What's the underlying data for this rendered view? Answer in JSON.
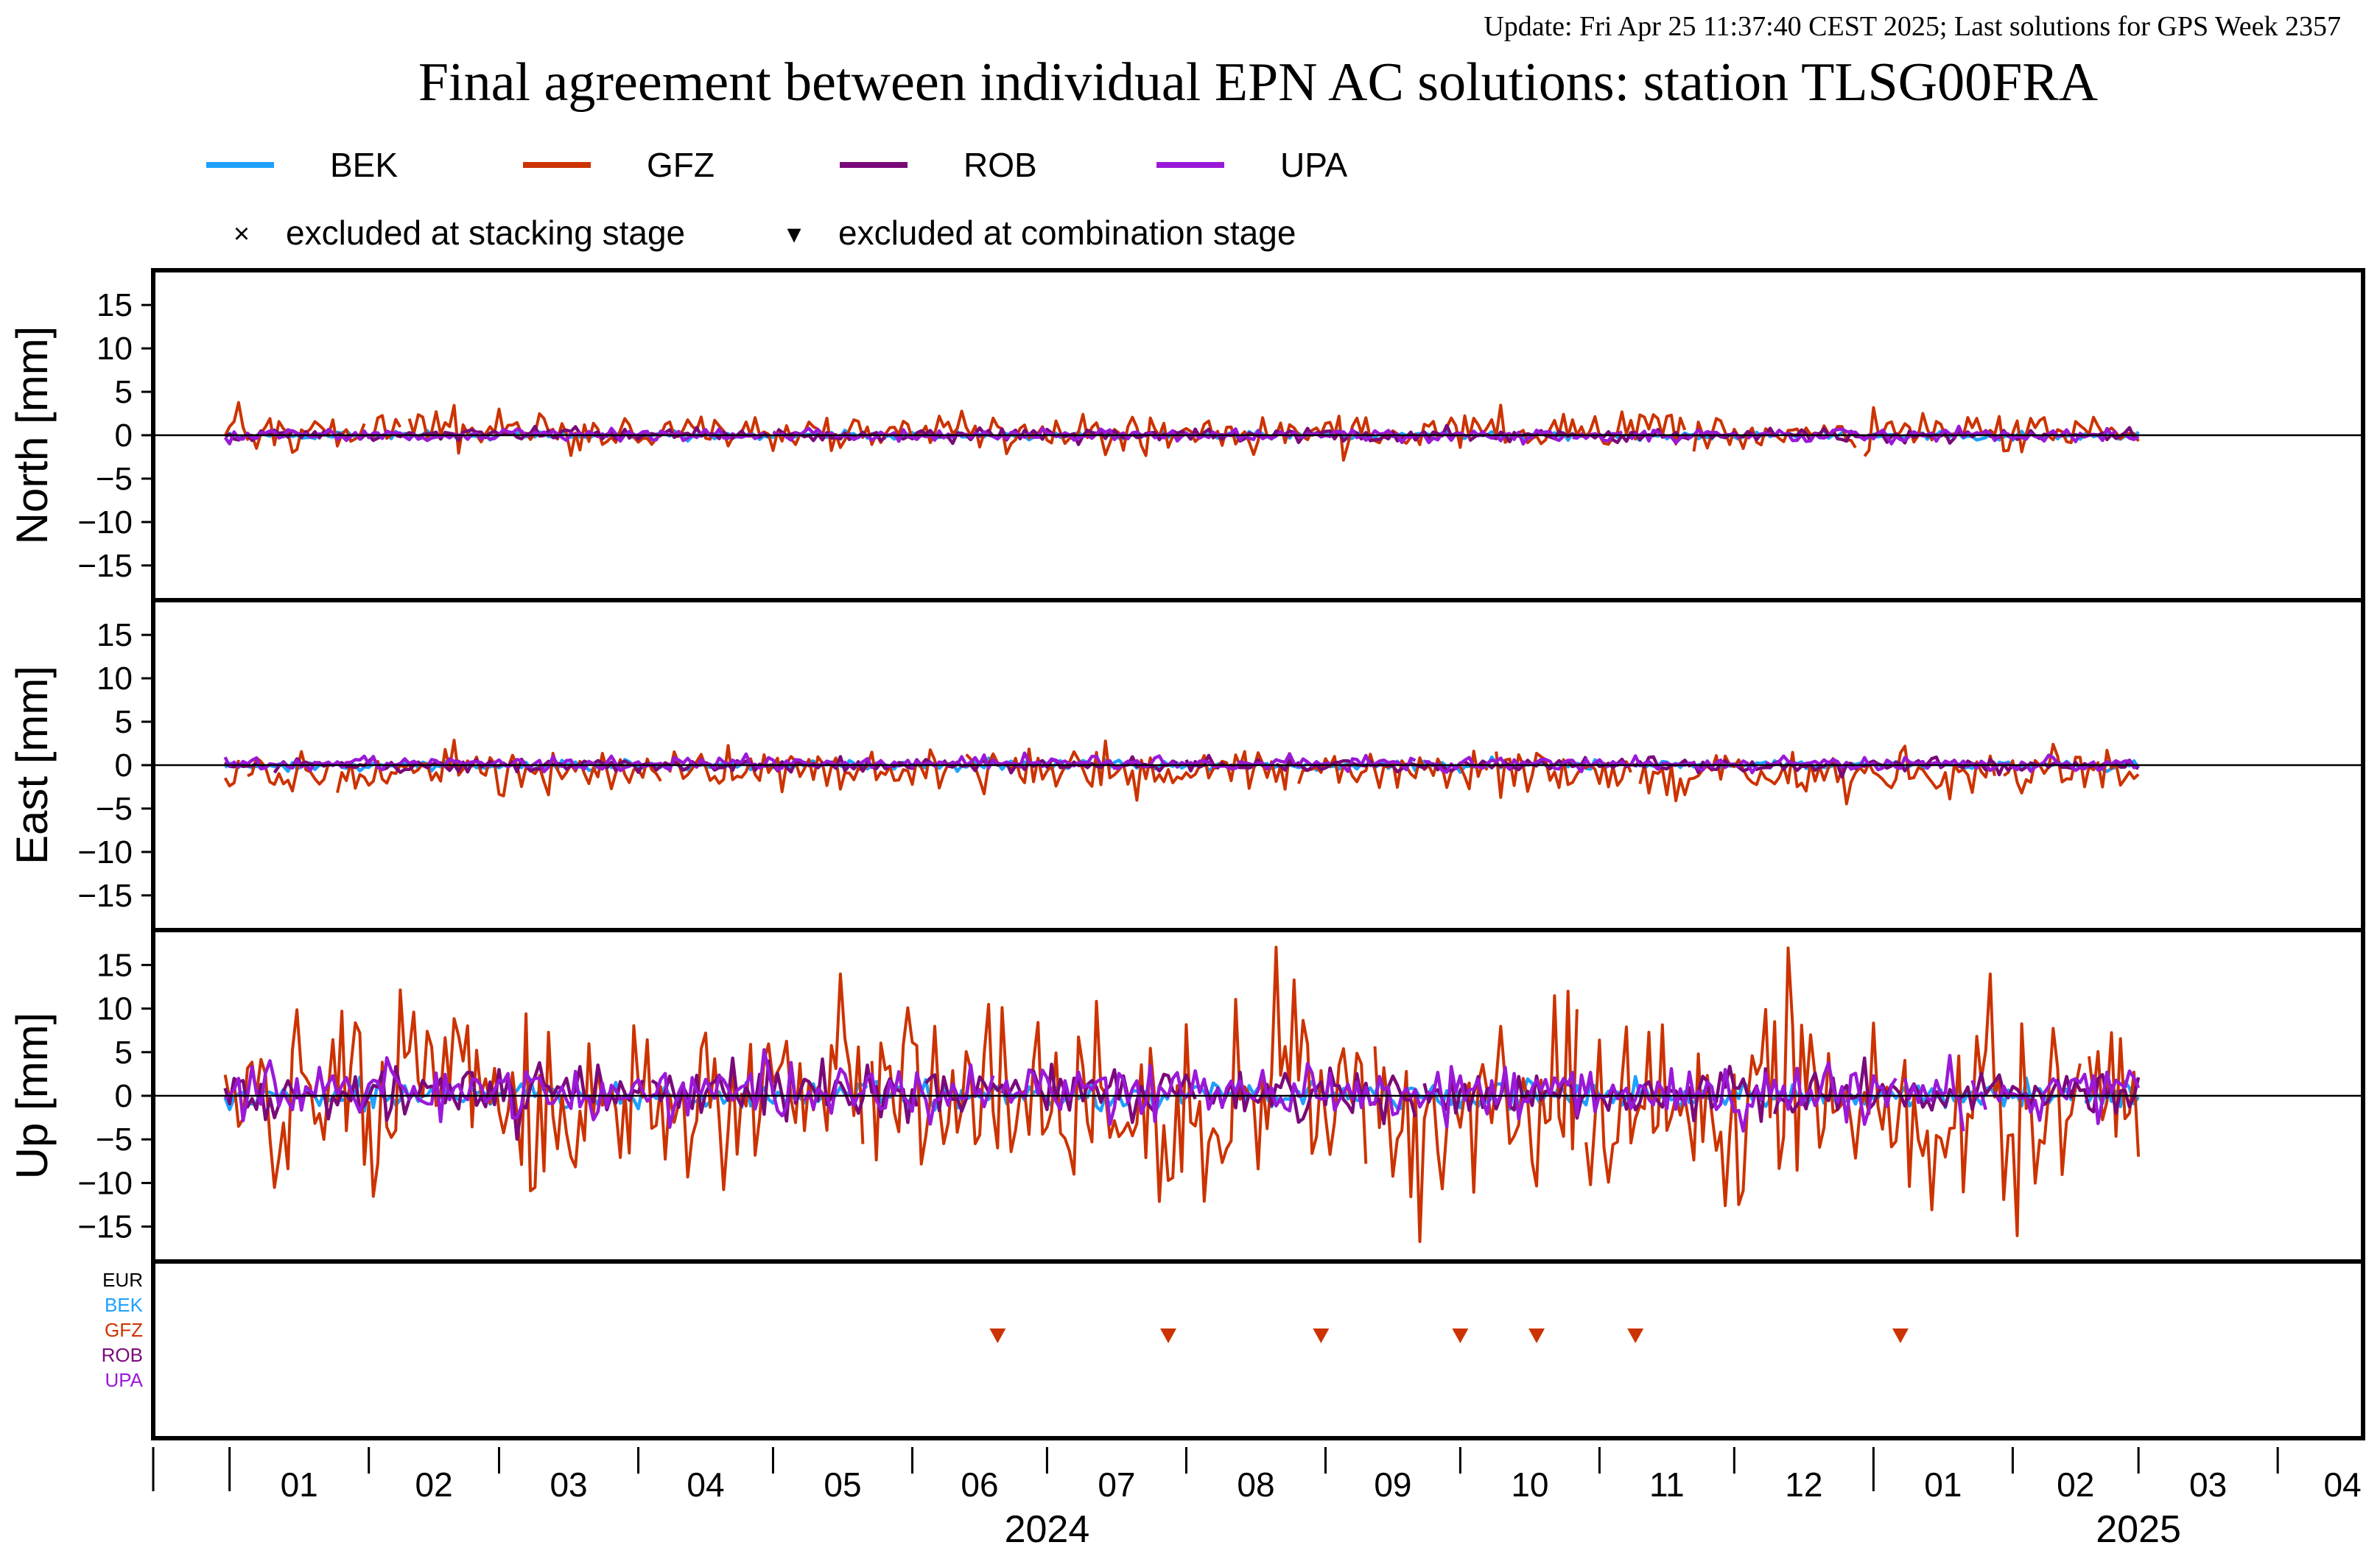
{
  "header": {
    "update_text": "Update: Fri Apr 25 11:37:40 CEST 2025; Last solutions for GPS Week 2357",
    "title": "Final agreement between individual EPN AC solutions: station TLSG00FRA"
  },
  "colors": {
    "BEK": "#1ea0ff",
    "GFZ": "#cc3300",
    "ROB": "#7a0a7a",
    "UPA": "#9a19d8",
    "EUR": "#000000",
    "update_text": "#8b1a1a"
  },
  "legend": {
    "series": [
      {
        "name": "BEK",
        "color": "#1ea0ff"
      },
      {
        "name": "GFZ",
        "color": "#cc3300"
      },
      {
        "name": "ROB",
        "color": "#7a0a7a"
      },
      {
        "name": "UPA",
        "color": "#9a19d8"
      }
    ],
    "markers": [
      {
        "symbol": "×",
        "label": "excluded at stacking stage"
      },
      {
        "symbol": "▾",
        "label": "excluded at combination stage"
      }
    ]
  },
  "chart_data": {
    "type": "line",
    "x_axis": {
      "range": [
        "2023-12-15",
        "2025-04-20"
      ],
      "month_ticks": [
        "2024-01-01",
        "2024-02-01",
        "2024-03-01",
        "2024-04-01",
        "2024-05-01",
        "2024-06-01",
        "2024-07-01",
        "2024-08-01",
        "2024-09-01",
        "2024-10-01",
        "2024-11-01",
        "2024-12-01",
        "2025-01-01",
        "2025-02-01",
        "2025-03-01",
        "2025-04-01"
      ],
      "month_labels": [
        "01",
        "02",
        "03",
        "04",
        "05",
        "06",
        "07",
        "08",
        "09",
        "10",
        "11",
        "12",
        "01",
        "02",
        "03",
        "04"
      ],
      "year_labels": [
        "2024",
        "2025"
      ],
      "year_label_dates": [
        "2024-07-01",
        "2025-03-01"
      ],
      "data_start": "2023-12-31",
      "data_end": "2025-03-01"
    },
    "panels": [
      {
        "ylabel": "North [mm]",
        "ylim": [
          -19,
          19
        ],
        "yticks": [
          -15,
          -10,
          -5,
          0,
          5,
          10,
          15
        ],
        "amplitude": {
          "BEK": 0.25,
          "GFZ": 1.1,
          "ROB": 0.35,
          "UPA": 0.35
        },
        "offset": {
          "BEK": 0.0,
          "GFZ": 0.4,
          "ROB": 0.0,
          "UPA": 0.0
        }
      },
      {
        "ylabel": "East [mm]",
        "ylim": [
          -19,
          19
        ],
        "yticks": [
          -15,
          -10,
          -5,
          0,
          5,
          10,
          15
        ],
        "amplitude": {
          "BEK": 0.3,
          "GFZ": 1.3,
          "ROB": 0.35,
          "UPA": 0.4
        },
        "offset": {
          "BEK": 0.0,
          "GFZ": -0.7,
          "ROB": 0.0,
          "UPA": 0.2
        }
      },
      {
        "ylabel": "Up [mm]",
        "ylim": [
          -19,
          19
        ],
        "yticks": [
          -15,
          -10,
          -5,
          0,
          5,
          10,
          15
        ],
        "amplitude": {
          "BEK": 0.8,
          "GFZ": 5.2,
          "ROB": 1.6,
          "UPA": 1.6
        },
        "offset": {
          "BEK": 0.0,
          "GFZ": -0.8,
          "ROB": 0.5,
          "UPA": 0.5
        }
      }
    ],
    "exclusion_panel": {
      "labels": [
        "EUR",
        "BEK",
        "GFZ",
        "ROB",
        "UPA"
      ],
      "combination_excluded": {
        "GFZ": [
          "2024-06-20",
          "2024-07-28",
          "2024-08-31",
          "2024-10-01",
          "2024-10-18",
          "2024-11-09",
          "2025-01-07"
        ]
      }
    },
    "series_names": [
      "BEK",
      "GFZ",
      "ROB",
      "UPA"
    ]
  }
}
